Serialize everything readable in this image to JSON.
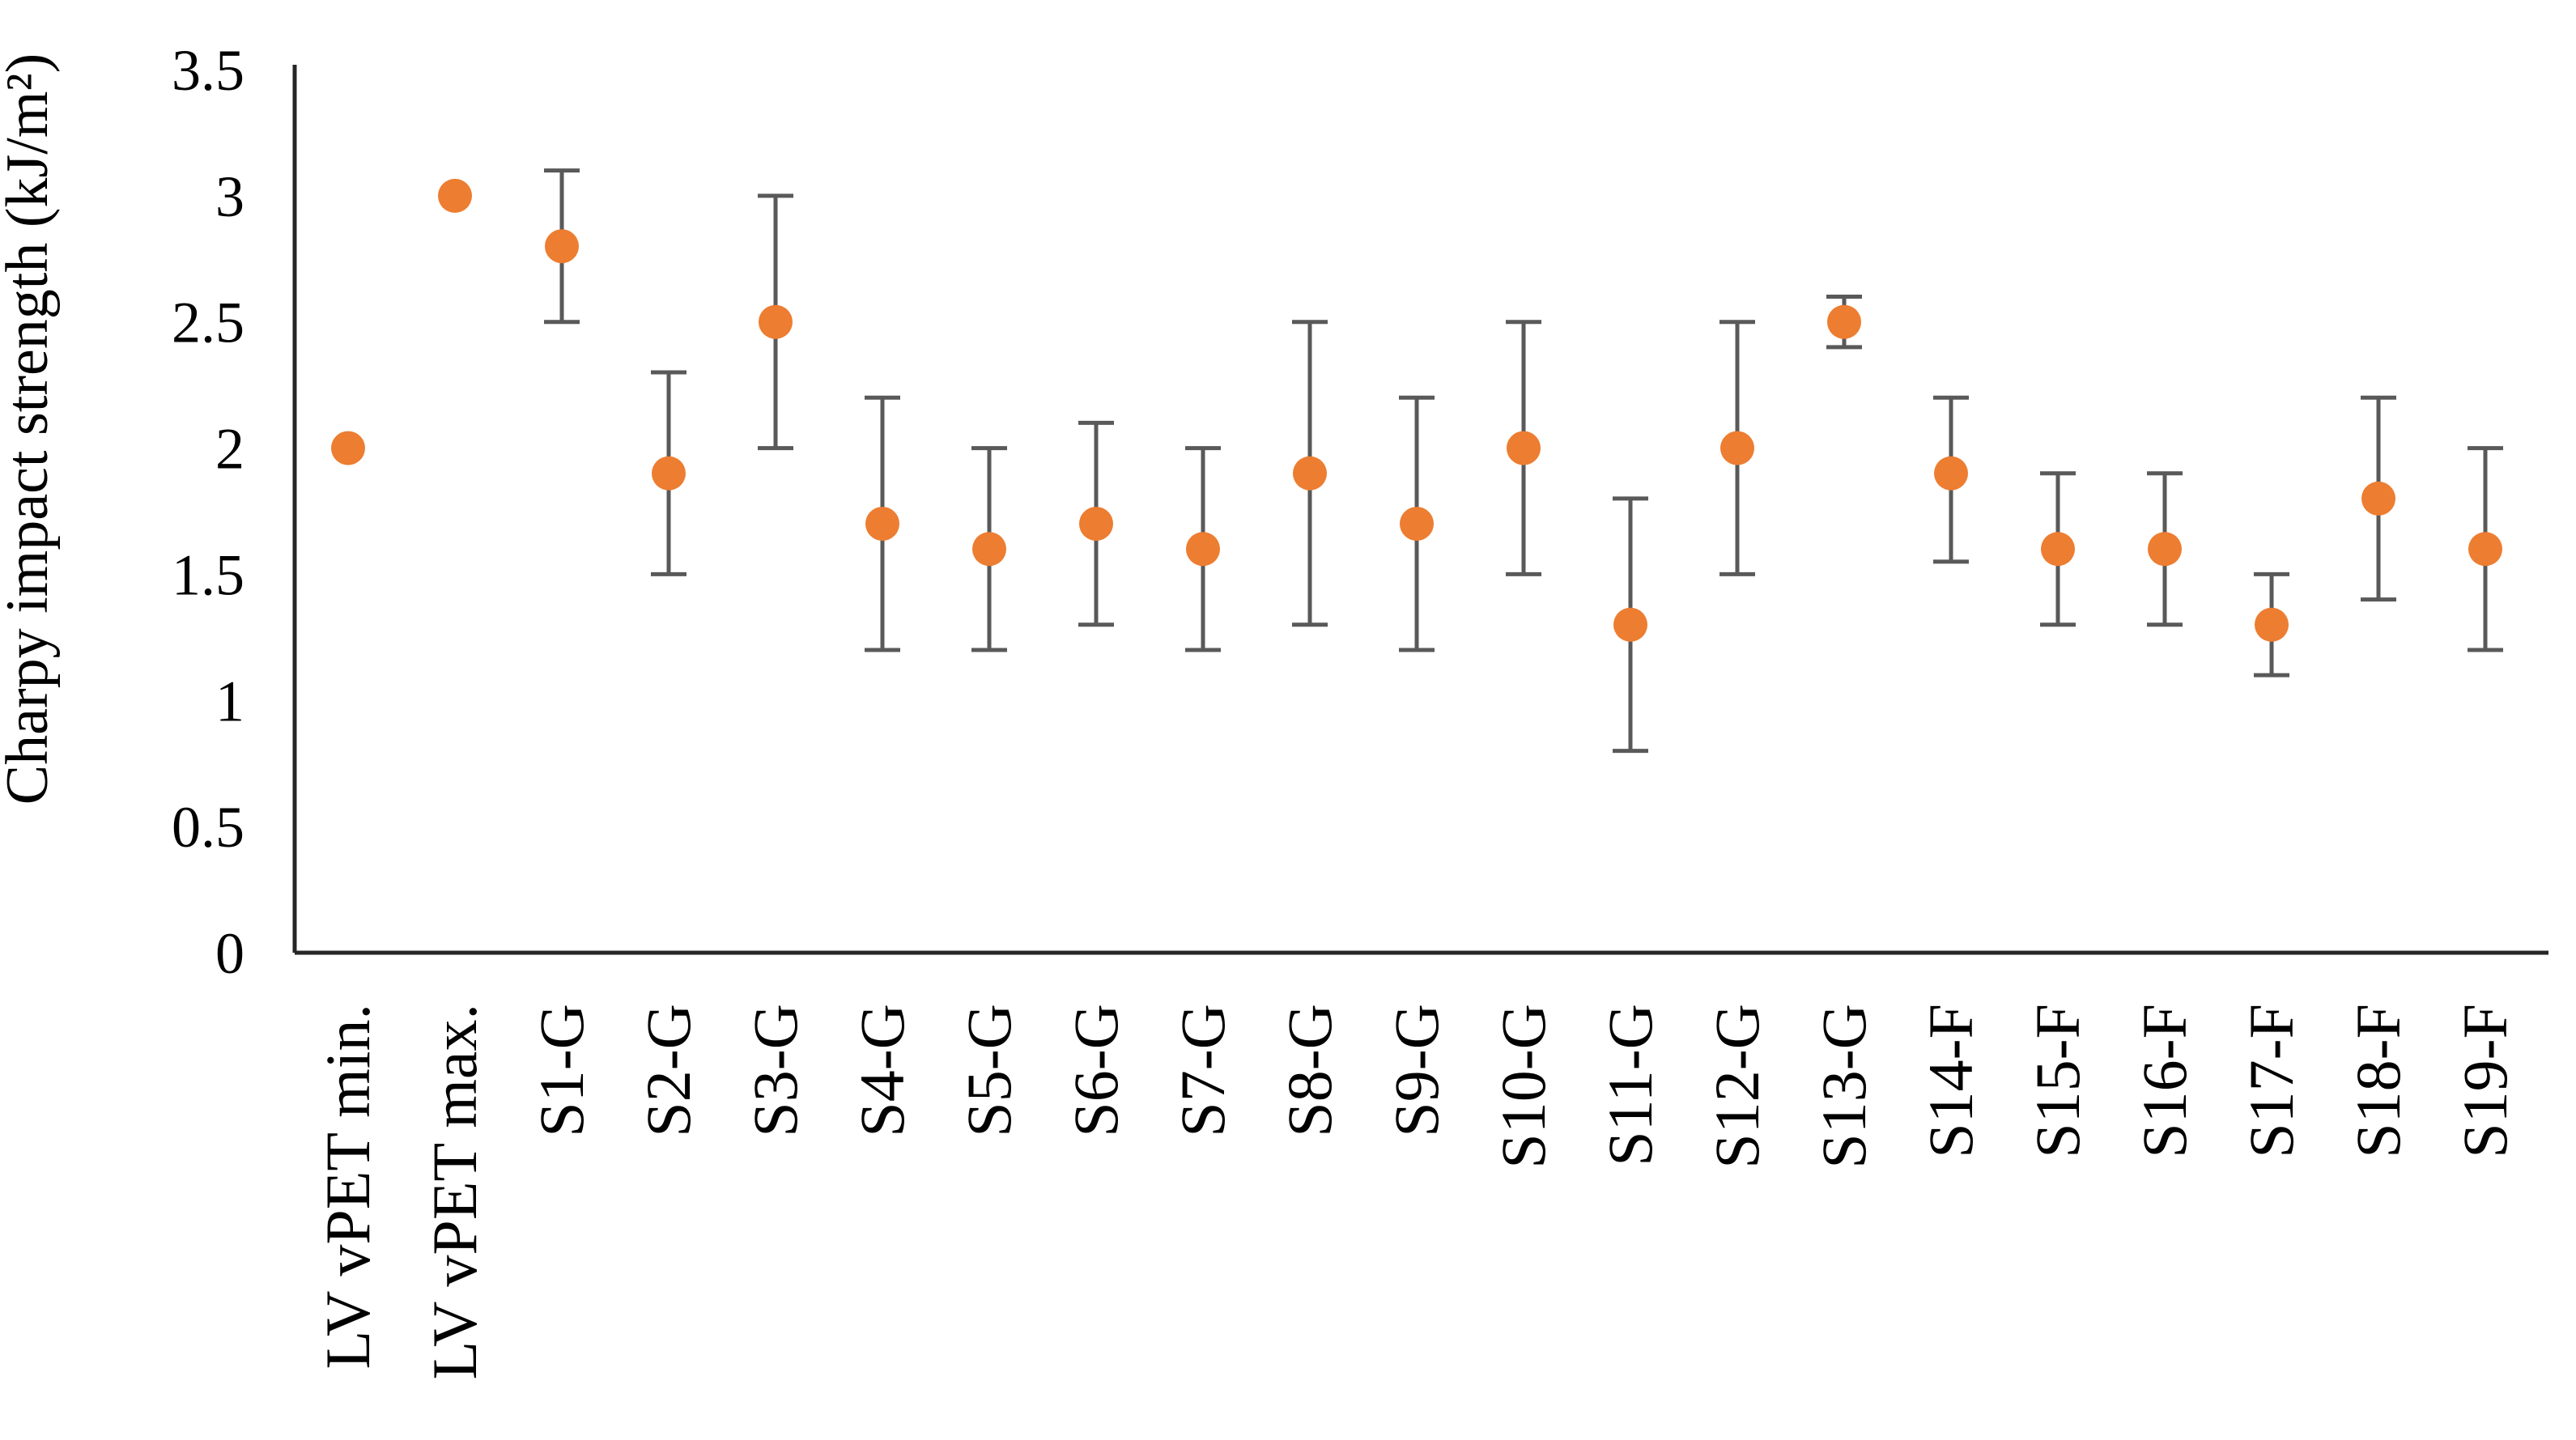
{
  "figure": {
    "background_color": "#ffffff"
  },
  "chart_data": {
    "type": "scatter",
    "title": "",
    "xlabel": "",
    "ylabel": "Charpy impact strength (kJ/m²)",
    "ylim": [
      0,
      3.5
    ],
    "yticks": [
      3.5,
      3,
      2.5,
      2,
      1.5,
      1,
      0.5,
      0
    ],
    "grid": false,
    "legend_position": "none",
    "marker_color": "#ED7D31",
    "error_bar_color": "#595959",
    "axis_color": "#262626",
    "text_color": "#000000",
    "categories": [
      "LV vPET min.",
      "LV vPET max.",
      "S1-G",
      "S2-G",
      "S3-G",
      "S4-G",
      "S5-G",
      "S6-G",
      "S7-G",
      "S8-G",
      "S9-G",
      "S10-G",
      "S11-G",
      "S12-G",
      "S13-G",
      "S14-F",
      "S15-F",
      "S16-F",
      "S17-F",
      "S18-F",
      "S19-F"
    ],
    "series": [
      {
        "name": "Charpy impact strength",
        "points": [
          {
            "label": "LV vPET min.",
            "value": 2.0,
            "low": null,
            "high": null
          },
          {
            "label": "LV vPET max.",
            "value": 3.0,
            "low": null,
            "high": null
          },
          {
            "label": "S1-G",
            "value": 2.8,
            "low": 2.5,
            "high": 3.1
          },
          {
            "label": "S2-G",
            "value": 1.9,
            "low": 1.5,
            "high": 2.3
          },
          {
            "label": "S3-G",
            "value": 2.5,
            "low": 2.0,
            "high": 3.0
          },
          {
            "label": "S4-G",
            "value": 1.7,
            "low": 1.2,
            "high": 2.2
          },
          {
            "label": "S5-G",
            "value": 1.6,
            "low": 1.2,
            "high": 2.0
          },
          {
            "label": "S6-G",
            "value": 1.7,
            "low": 1.3,
            "high": 2.1
          },
          {
            "label": "S7-G",
            "value": 1.6,
            "low": 1.2,
            "high": 2.0
          },
          {
            "label": "S8-G",
            "value": 1.9,
            "low": 1.3,
            "high": 2.5
          },
          {
            "label": "S9-G",
            "value": 1.7,
            "low": 1.2,
            "high": 2.2
          },
          {
            "label": "S10-G",
            "value": 2.0,
            "low": 1.5,
            "high": 2.5
          },
          {
            "label": "S11-G",
            "value": 1.3,
            "low": 0.8,
            "high": 1.8
          },
          {
            "label": "S12-G",
            "value": 2.0,
            "low": 1.5,
            "high": 2.5
          },
          {
            "label": "S13-G",
            "value": 2.5,
            "low": 2.4,
            "high": 2.6
          },
          {
            "label": "S14-F",
            "value": 1.9,
            "low": 1.55,
            "high": 2.2
          },
          {
            "label": "S15-F",
            "value": 1.6,
            "low": 1.3,
            "high": 1.9
          },
          {
            "label": "S16-F",
            "value": 1.6,
            "low": 1.3,
            "high": 1.9
          },
          {
            "label": "S17-F",
            "value": 1.3,
            "low": 1.1,
            "high": 1.5
          },
          {
            "label": "S18-F",
            "value": 1.8,
            "low": 1.4,
            "high": 2.2
          },
          {
            "label": "S19-F",
            "value": 1.6,
            "low": 1.2,
            "high": 2.0
          }
        ]
      }
    ]
  }
}
